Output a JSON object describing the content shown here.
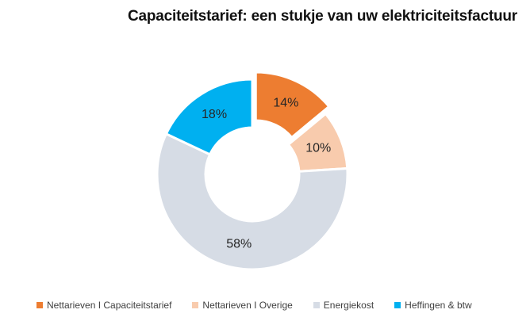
{
  "chart_data": {
    "type": "pie",
    "title": "Capaciteitstarief: een stukje van uw elektriciteitsfactuur",
    "donut": true,
    "exploded": "Nettarieven I Capaciteitstarief",
    "slices": [
      {
        "label": "Nettarieven I Capaciteitstarief",
        "value": 14,
        "display": "14%",
        "color": "#ED7D31"
      },
      {
        "label": "Nettarieven I Overige",
        "value": 10,
        "display": "10%",
        "color": "#F8CBAD"
      },
      {
        "label": "Energiekost",
        "value": 58,
        "display": "58%",
        "color": "#D6DCE5"
      },
      {
        "label": "Heffingen & btw",
        "value": 18,
        "display": "18%",
        "color": "#00B0F0"
      }
    ],
    "legend_position": "bottom"
  }
}
